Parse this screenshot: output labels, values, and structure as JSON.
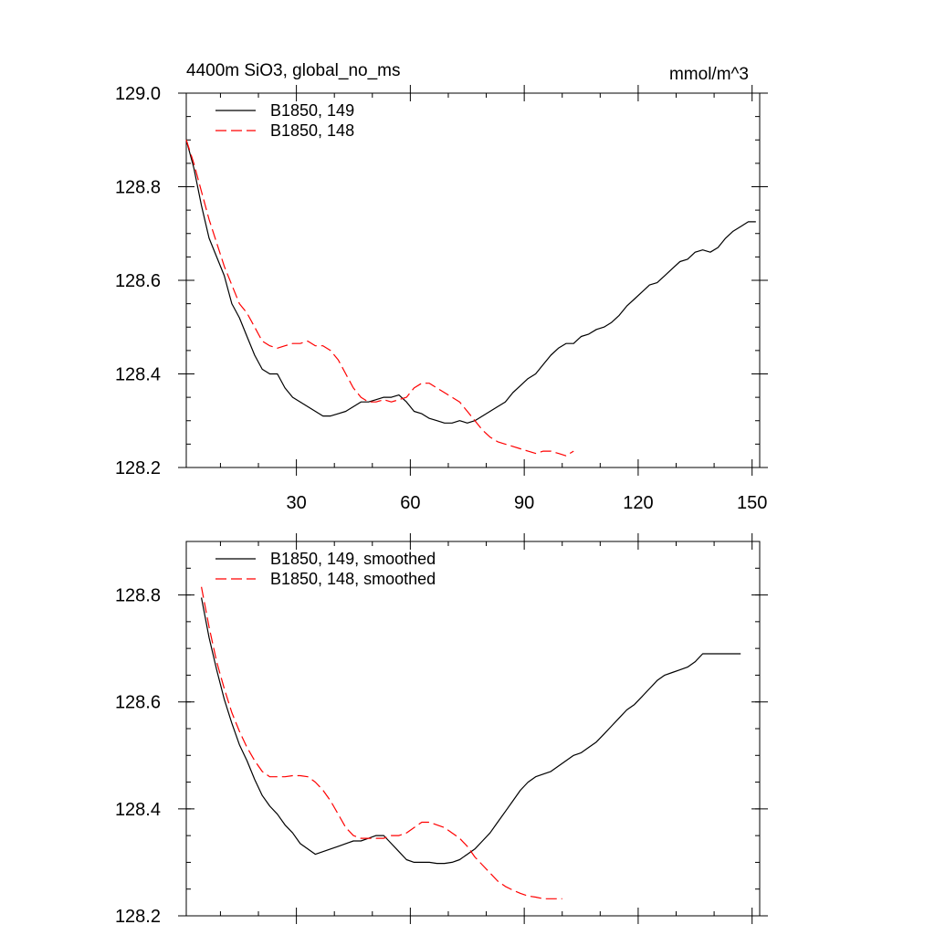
{
  "chart_data": [
    {
      "type": "line",
      "title": "4400m SiO3, global_no_ms",
      "units": "mmol/m^3",
      "xlim": [
        1,
        152
      ],
      "ylim": [
        128.2,
        129.0
      ],
      "xticks": [
        30,
        60,
        90,
        120,
        150
      ],
      "xtick_labels": [
        "30",
        "60",
        "90",
        "120",
        "150"
      ],
      "yticks": [
        128.2,
        128.4,
        128.6,
        128.8,
        129.0
      ],
      "ytick_labels": [
        "128.2",
        "128.4",
        "128.6",
        "128.8",
        "129.0"
      ],
      "legend_position": "top-left",
      "series": [
        {
          "name": "B1850, 149",
          "color": "#000000",
          "dash": "solid",
          "x": [
            1,
            3,
            5,
            7,
            9,
            11,
            13,
            15,
            17,
            19,
            21,
            23,
            25,
            27,
            29,
            31,
            33,
            35,
            37,
            39,
            41,
            43,
            45,
            47,
            49,
            51,
            53,
            55,
            57,
            59,
            61,
            63,
            65,
            67,
            69,
            71,
            73,
            75,
            77,
            79,
            81,
            83,
            85,
            87,
            89,
            91,
            93,
            95,
            97,
            99,
            101,
            103,
            105,
            107,
            109,
            111,
            113,
            115,
            117,
            119,
            121,
            123,
            125,
            127,
            129,
            131,
            133,
            135,
            137,
            139,
            141,
            143,
            145,
            147,
            149,
            151
          ],
          "y": [
            128.9,
            128.84,
            128.76,
            128.69,
            128.65,
            128.61,
            128.55,
            128.52,
            128.48,
            128.44,
            128.41,
            128.4,
            128.4,
            128.37,
            128.35,
            128.34,
            128.33,
            128.32,
            128.31,
            128.31,
            128.315,
            128.32,
            128.33,
            128.34,
            128.34,
            128.345,
            128.35,
            128.35,
            128.355,
            128.34,
            128.32,
            128.315,
            128.305,
            128.3,
            128.295,
            128.295,
            128.3,
            128.295,
            128.3,
            128.31,
            128.32,
            128.33,
            128.34,
            128.36,
            128.375,
            128.39,
            128.4,
            128.42,
            128.44,
            128.455,
            128.465,
            128.465,
            128.48,
            128.485,
            128.495,
            128.5,
            128.51,
            128.525,
            128.545,
            128.56,
            128.575,
            128.59,
            128.595,
            128.61,
            128.625,
            128.64,
            128.645,
            128.66,
            128.665,
            128.66,
            128.67,
            128.69,
            128.705,
            128.715,
            128.725,
            128.725
          ]
        },
        {
          "name": "B1850, 148",
          "color": "#ff0000",
          "dash": "dashed",
          "x": [
            1,
            3,
            5,
            7,
            9,
            11,
            13,
            15,
            17,
            19,
            21,
            23,
            25,
            27,
            29,
            31,
            33,
            35,
            37,
            39,
            41,
            43,
            45,
            47,
            49,
            51,
            53,
            55,
            57,
            59,
            61,
            63,
            65,
            67,
            69,
            71,
            73,
            75,
            77,
            79,
            81,
            83,
            85,
            87,
            89,
            91,
            93,
            95,
            97,
            99,
            101,
            103
          ],
          "y": [
            128.9,
            128.85,
            128.79,
            128.73,
            128.68,
            128.63,
            128.59,
            128.55,
            128.53,
            128.5,
            128.47,
            128.46,
            128.455,
            128.46,
            128.465,
            128.465,
            128.47,
            128.46,
            128.46,
            128.45,
            128.43,
            128.4,
            128.37,
            128.35,
            128.34,
            128.34,
            128.345,
            128.34,
            128.345,
            128.35,
            128.37,
            128.38,
            128.38,
            128.37,
            128.36,
            128.35,
            128.34,
            128.32,
            128.3,
            128.28,
            128.265,
            128.255,
            128.25,
            128.245,
            128.24,
            128.235,
            128.23,
            128.235,
            128.235,
            128.23,
            128.225,
            128.235
          ]
        }
      ]
    },
    {
      "type": "line",
      "title": "",
      "xlim": [
        1,
        152
      ],
      "ylim": [
        128.2,
        128.9
      ],
      "xticks": [
        30,
        60,
        90,
        120,
        150
      ],
      "yticks": [
        128.2,
        128.4,
        128.6,
        128.8
      ],
      "ytick_labels": [
        "128.2",
        "128.4",
        "128.6",
        "128.8"
      ],
      "legend_position": "top-left",
      "series": [
        {
          "name": "B1850, 149, smoothed",
          "color": "#000000",
          "dash": "solid",
          "x": [
            5,
            7,
            9,
            11,
            13,
            15,
            17,
            19,
            21,
            23,
            25,
            27,
            29,
            31,
            33,
            35,
            37,
            39,
            41,
            43,
            45,
            47,
            49,
            51,
            53,
            55,
            57,
            59,
            61,
            63,
            65,
            67,
            69,
            71,
            73,
            75,
            77,
            79,
            81,
            83,
            85,
            87,
            89,
            91,
            93,
            95,
            97,
            99,
            101,
            103,
            105,
            107,
            109,
            111,
            113,
            115,
            117,
            119,
            121,
            123,
            125,
            127,
            129,
            131,
            133,
            135,
            137,
            139,
            141,
            143,
            145,
            147
          ],
          "y": [
            128.795,
            128.72,
            128.66,
            128.605,
            128.56,
            128.52,
            128.49,
            128.455,
            128.425,
            128.405,
            128.39,
            128.37,
            128.355,
            128.335,
            128.325,
            128.315,
            128.32,
            128.325,
            128.33,
            128.335,
            128.34,
            128.34,
            128.345,
            128.35,
            128.35,
            128.335,
            128.32,
            128.305,
            128.3,
            128.3,
            128.3,
            128.298,
            128.298,
            128.3,
            128.305,
            128.315,
            128.325,
            128.34,
            128.355,
            128.375,
            128.395,
            128.415,
            128.435,
            128.45,
            128.46,
            128.465,
            128.47,
            128.48,
            128.49,
            128.5,
            128.505,
            128.515,
            128.525,
            128.54,
            128.555,
            128.57,
            128.585,
            128.595,
            128.61,
            128.625,
            128.64,
            128.65,
            128.655,
            128.66,
            128.665,
            128.675,
            128.69,
            128.69,
            128.69,
            128.69,
            128.69,
            128.69
          ]
        },
        {
          "name": "B1850, 148, smoothed",
          "color": "#ff0000",
          "dash": "dashed",
          "x": [
            5,
            7,
            9,
            11,
            13,
            15,
            17,
            19,
            21,
            23,
            25,
            27,
            29,
            31,
            33,
            35,
            37,
            39,
            41,
            43,
            45,
            47,
            49,
            51,
            53,
            55,
            57,
            59,
            61,
            63,
            65,
            67,
            69,
            71,
            73,
            75,
            77,
            79,
            81,
            83,
            85,
            87,
            89,
            91,
            93,
            95,
            97,
            99,
            100
          ],
          "y": [
            128.815,
            128.74,
            128.675,
            128.625,
            128.58,
            128.545,
            128.515,
            128.49,
            128.47,
            128.46,
            128.46,
            128.46,
            128.462,
            128.462,
            128.46,
            128.45,
            128.435,
            128.415,
            128.39,
            128.365,
            128.35,
            128.345,
            128.345,
            128.345,
            128.345,
            128.35,
            128.35,
            128.355,
            128.365,
            128.375,
            128.375,
            128.37,
            128.365,
            128.355,
            128.345,
            128.33,
            128.31,
            128.295,
            128.28,
            128.265,
            128.255,
            128.248,
            128.242,
            128.237,
            128.235,
            128.232,
            128.232,
            128.232,
            128.232
          ]
        }
      ]
    }
  ]
}
